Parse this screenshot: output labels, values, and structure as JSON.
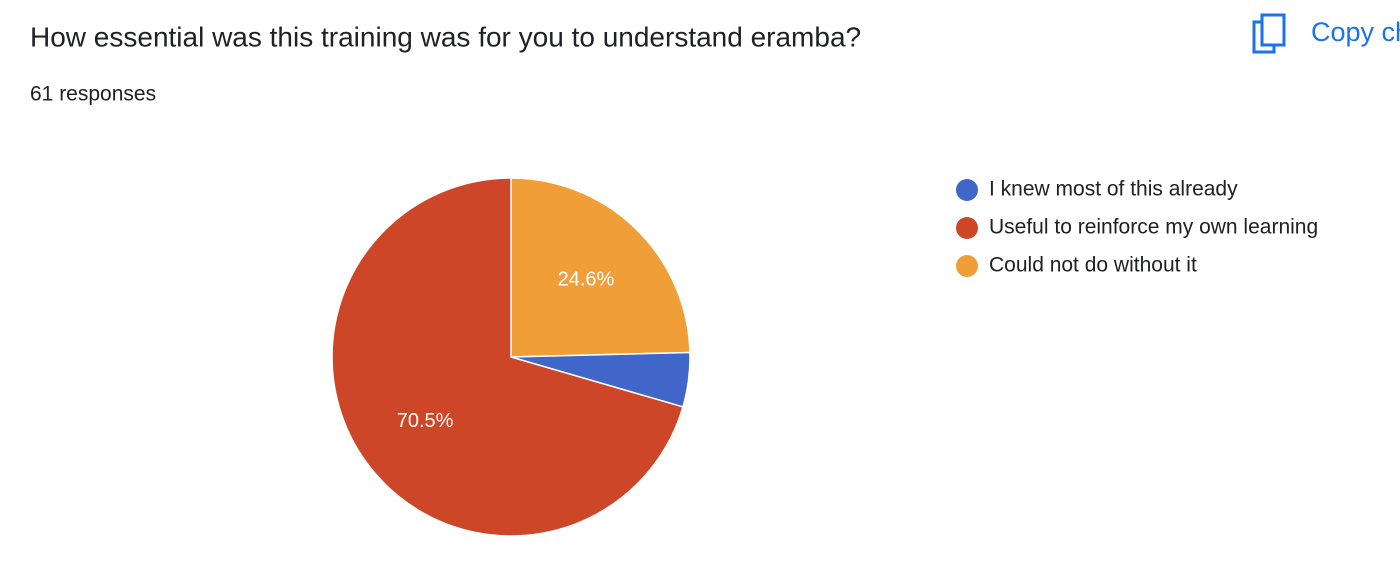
{
  "header": {
    "title": "How essential was this training was for you to understand eramba?",
    "responses": "61 responses",
    "copy_button": "Copy chart"
  },
  "chart_data": {
    "type": "pie",
    "categories": [
      "I knew most of this already",
      "Useful to reinforce my own learning",
      "Could not do without it"
    ],
    "values": [
      4.9,
      70.5,
      24.6
    ],
    "value_labels": [
      null,
      "70.5%",
      "24.6%"
    ],
    "colors": [
      "#3f66c8",
      "#cc4627",
      "#f09e38"
    ]
  }
}
